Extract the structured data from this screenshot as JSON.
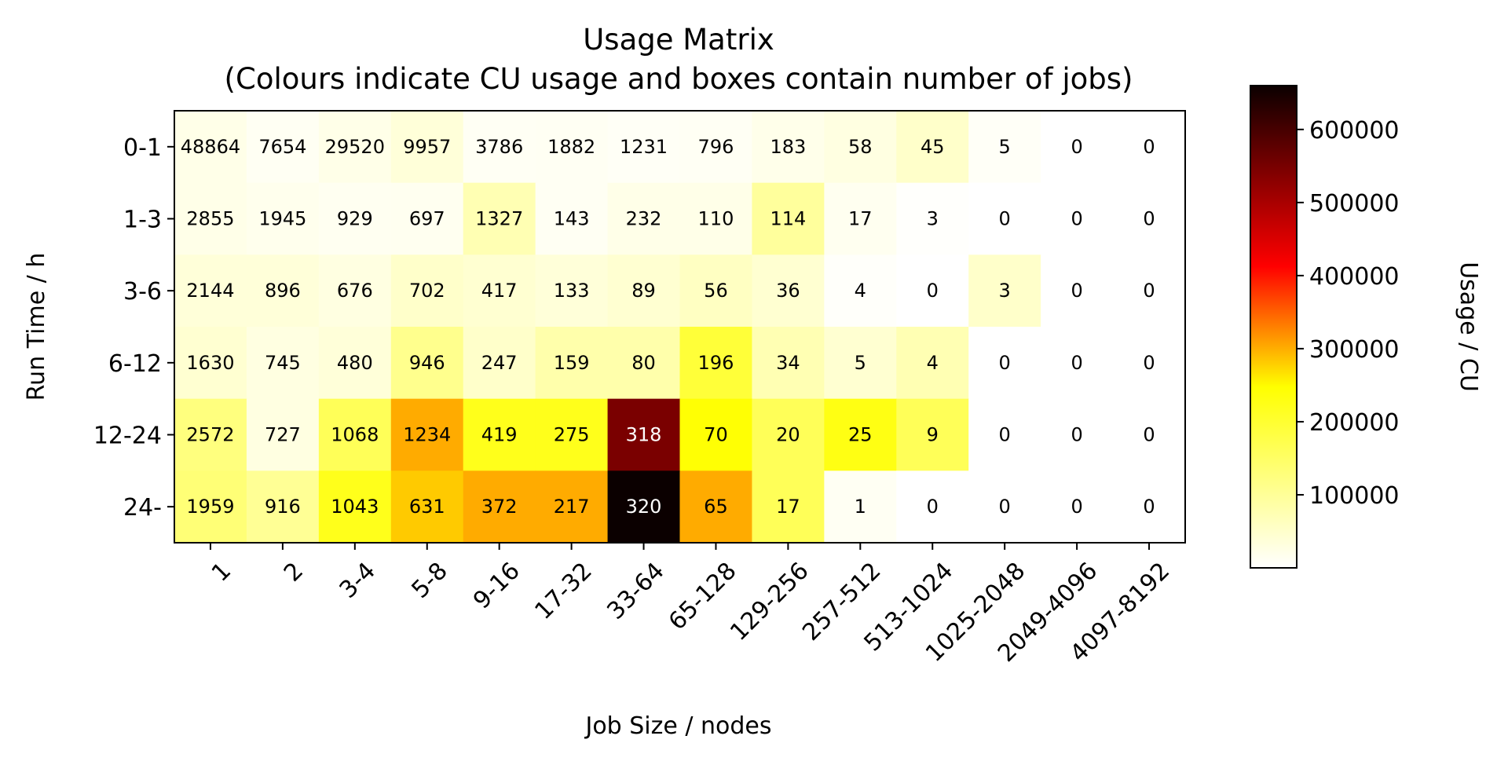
{
  "chart_data": {
    "type": "heatmap",
    "title": "Usage Matrix",
    "subtitle": "(Colours indicate CU usage and boxes contain number of jobs)",
    "xlabel": "Job Size / nodes",
    "ylabel": "Run Time / h",
    "x_categories": [
      "1",
      "2",
      "3-4",
      "5-8",
      "9-16",
      "17-32",
      "33-64",
      "65-128",
      "129-256",
      "257-512",
      "513-1024",
      "1025-2048",
      "2049-4096",
      "4097-8192"
    ],
    "y_categories": [
      "0-1",
      "1-3",
      "3-6",
      "6-12",
      "12-24",
      "24-"
    ],
    "job_counts": [
      [
        48864,
        7654,
        29520,
        9957,
        3786,
        1882,
        1231,
        796,
        183,
        58,
        45,
        5,
        0,
        0
      ],
      [
        2855,
        1945,
        929,
        697,
        1327,
        143,
        232,
        110,
        114,
        17,
        3,
        0,
        0,
        0
      ],
      [
        2144,
        896,
        676,
        702,
        417,
        133,
        89,
        56,
        36,
        4,
        0,
        3,
        0,
        0
      ],
      [
        1630,
        745,
        480,
        946,
        247,
        159,
        80,
        196,
        34,
        5,
        4,
        0,
        0,
        0
      ],
      [
        2572,
        727,
        1068,
        1234,
        419,
        275,
        318,
        70,
        20,
        25,
        9,
        0,
        0,
        0
      ],
      [
        1959,
        916,
        1043,
        631,
        372,
        217,
        320,
        65,
        17,
        1,
        0,
        0,
        0,
        0
      ]
    ],
    "usage_cu": [
      [
        15000,
        8000,
        15000,
        25000,
        7000,
        8000,
        6000,
        7000,
        14000,
        20000,
        35000,
        5000,
        0,
        0
      ],
      [
        15000,
        12000,
        9000,
        10000,
        50000,
        8000,
        15000,
        15000,
        65000,
        10000,
        2000,
        0,
        0,
        0
      ],
      [
        25000,
        25000,
        20000,
        35000,
        30000,
        25000,
        30000,
        40000,
        30000,
        3000,
        0,
        35000,
        0,
        0
      ],
      [
        30000,
        20000,
        25000,
        75000,
        35000,
        55000,
        55000,
        130000,
        50000,
        30000,
        50000,
        0,
        0,
        0
      ],
      [
        85000,
        20000,
        110000,
        250000,
        150000,
        150000,
        550000,
        165000,
        110000,
        155000,
        110000,
        0,
        0,
        0
      ],
      [
        90000,
        70000,
        150000,
        220000,
        250000,
        250000,
        660000,
        250000,
        110000,
        8000,
        0,
        0,
        0,
        0
      ]
    ],
    "colorbar": {
      "label": "Usage / CU",
      "colormap": "hot_r",
      "range": [
        0,
        660000
      ],
      "ticks": [
        100000,
        200000,
        300000,
        400000,
        500000,
        600000
      ],
      "tick_labels": [
        "100000",
        "200000",
        "300000",
        "400000",
        "500000",
        "600000"
      ]
    }
  }
}
